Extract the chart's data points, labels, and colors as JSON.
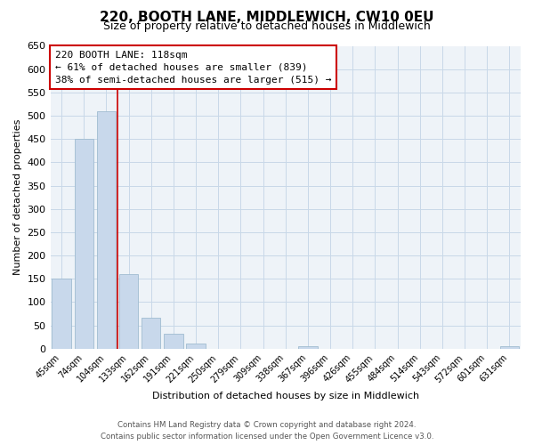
{
  "title": "220, BOOTH LANE, MIDDLEWICH, CW10 0EU",
  "subtitle": "Size of property relative to detached houses in Middlewich",
  "xlabel": "Distribution of detached houses by size in Middlewich",
  "ylabel": "Number of detached properties",
  "bar_labels": [
    "45sqm",
    "74sqm",
    "104sqm",
    "133sqm",
    "162sqm",
    "191sqm",
    "221sqm",
    "250sqm",
    "279sqm",
    "309sqm",
    "338sqm",
    "367sqm",
    "396sqm",
    "426sqm",
    "455sqm",
    "484sqm",
    "514sqm",
    "543sqm",
    "572sqm",
    "601sqm",
    "631sqm"
  ],
  "bar_values": [
    150,
    450,
    510,
    160,
    67,
    32,
    12,
    0,
    0,
    0,
    0,
    5,
    0,
    0,
    0,
    0,
    0,
    0,
    0,
    0,
    5
  ],
  "bar_color": "#c8d8eb",
  "bar_edge_color": "#a0bcd0",
  "marker_line_color": "#cc0000",
  "annotation_text": "220 BOOTH LANE: 118sqm\n← 61% of detached houses are smaller (839)\n38% of semi-detached houses are larger (515) →",
  "annotation_box_color": "#ffffff",
  "annotation_box_edge": "#cc0000",
  "ylim": [
    0,
    650
  ],
  "yticks": [
    0,
    50,
    100,
    150,
    200,
    250,
    300,
    350,
    400,
    450,
    500,
    550,
    600,
    650
  ],
  "footer_line1": "Contains HM Land Registry data © Crown copyright and database right 2024.",
  "footer_line2": "Contains public sector information licensed under the Open Government Licence v3.0.",
  "bg_color": "#ffffff",
  "grid_color": "#c8d8e8",
  "plot_bg_color": "#eef3f8"
}
